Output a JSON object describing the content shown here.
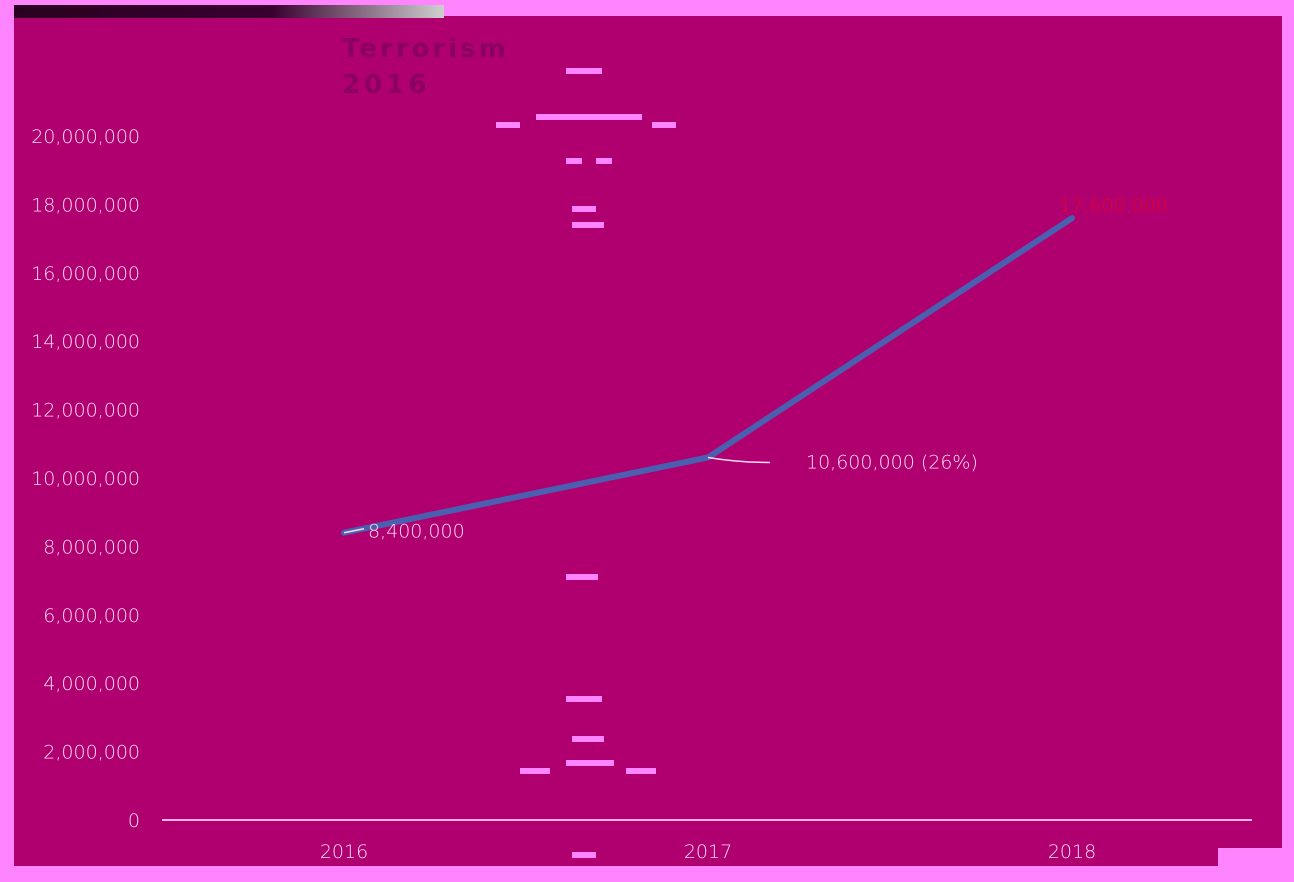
{
  "chart_data": {
    "type": "line",
    "title": "Terrorism",
    "subtitle": "2016",
    "categories": [
      "2016",
      "2017",
      "2018"
    ],
    "series": [
      {
        "values": [
          8400000,
          10600000,
          17600000
        ]
      }
    ],
    "data_labels": [
      "8,400,000",
      "10,600,000 (26%)",
      "17,600,000"
    ],
    "y_ticks": [
      "0",
      "2,000,000",
      "4,000,000",
      "6,000,000",
      "8,000,000",
      "10,000,000",
      "12,000,000",
      "14,000,000",
      "16,000,000",
      "18,000,000",
      "20,000,000"
    ],
    "ylim": [
      0,
      20000000
    ],
    "grid": false,
    "legend": "none"
  },
  "colors": {
    "background": "#b0006f",
    "frame": "#ff85ff",
    "line": "#4a5fb0",
    "tick_text": "#ffd9f0",
    "label_text": "#ffd9f0",
    "highlight_label": "#e8002a",
    "title_text": "#8a0060",
    "axis_line": "#ffb3e0"
  }
}
